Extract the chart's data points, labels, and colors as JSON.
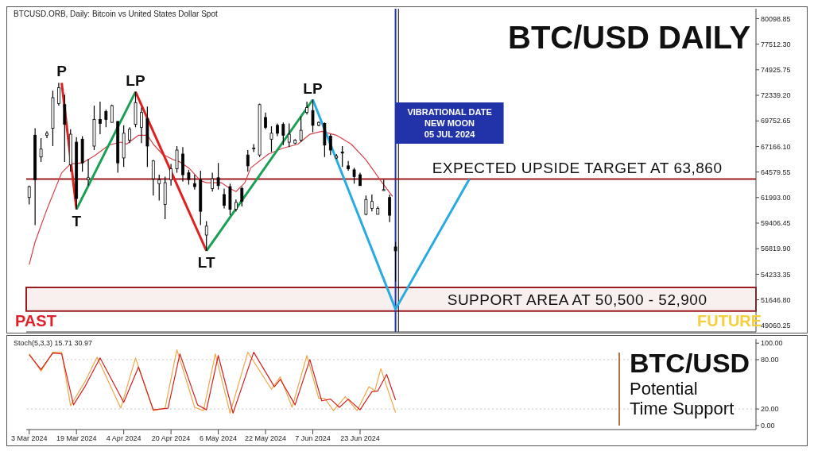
{
  "chart_data": [
    {
      "type": "candlestick",
      "title": "BTC/USD DAILY",
      "subtitle": "BTCUSD.ORB, Daily:  Bitcoin vs United States Dollar Spot",
      "color": "#000000",
      "x": [
        "2024-03-03",
        "2024-03-05",
        "2024-03-07",
        "2024-03-09",
        "2024-03-11",
        "2024-03-13",
        "2024-03-15",
        "2024-03-17",
        "2024-03-19",
        "2024-03-21",
        "2024-03-23",
        "2024-03-25",
        "2024-03-27",
        "2024-03-29",
        "2024-03-31",
        "2024-04-02",
        "2024-04-04",
        "2024-04-06",
        "2024-04-08",
        "2024-04-10",
        "2024-04-12",
        "2024-04-14",
        "2024-04-16",
        "2024-04-18",
        "2024-04-20",
        "2024-04-22",
        "2024-04-24",
        "2024-04-26",
        "2024-04-28",
        "2024-04-30",
        "2024-05-02",
        "2024-05-04",
        "2024-05-06",
        "2024-05-08",
        "2024-05-10",
        "2024-05-12",
        "2024-05-14",
        "2024-05-16",
        "2024-05-18",
        "2024-05-20",
        "2024-05-22",
        "2024-05-24",
        "2024-05-26",
        "2024-05-28",
        "2024-05-30",
        "2024-06-01",
        "2024-06-03",
        "2024-06-05",
        "2024-06-07",
        "2024-06-09",
        "2024-06-11",
        "2024-06-13",
        "2024-06-15",
        "2024-06-17",
        "2024-06-19",
        "2024-06-21",
        "2024-06-23",
        "2024-06-25",
        "2024-06-27",
        "2024-06-29",
        "2024-07-01",
        "2024-07-03",
        "2024-07-05"
      ],
      "ohlc": [
        [
          62000,
          63200,
          61300,
          63100
        ],
        [
          68300,
          69000,
          59200,
          63800
        ],
        [
          66100,
          68000,
          65600,
          66900
        ],
        [
          68300,
          68700,
          68000,
          68500
        ],
        [
          69000,
          72800,
          67200,
          72100
        ],
        [
          71500,
          73600,
          71300,
          73100
        ],
        [
          71400,
          72400,
          65600,
          69400
        ],
        [
          65300,
          68900,
          64600,
          68400
        ],
        [
          67600,
          68100,
          60800,
          61900
        ],
        [
          67900,
          68200,
          64600,
          65500
        ],
        [
          63800,
          65900,
          63200,
          64000
        ],
        [
          67200,
          71300,
          66800,
          69900
        ],
        [
          69900,
          71700,
          68400,
          69500
        ],
        [
          70700,
          70900,
          69100,
          69900
        ],
        [
          69600,
          71400,
          69600,
          71300
        ],
        [
          69700,
          69700,
          64500,
          65500
        ],
        [
          66000,
          69300,
          65100,
          68500
        ],
        [
          67800,
          69100,
          67500,
          68900
        ],
        [
          69400,
          72700,
          69100,
          71600
        ],
        [
          69100,
          71100,
          67500,
          70600
        ],
        [
          70000,
          71200,
          65100,
          67200
        ],
        [
          63900,
          65800,
          62200,
          65700
        ],
        [
          63400,
          64300,
          61700,
          63800
        ],
        [
          61300,
          64100,
          59800,
          63500
        ],
        [
          63800,
          65400,
          63200,
          64900
        ],
        [
          64900,
          67200,
          64500,
          66800
        ],
        [
          66400,
          67100,
          63600,
          64300
        ],
        [
          64500,
          64800,
          63300,
          63800
        ],
        [
          63400,
          64300,
          62800,
          63100
        ],
        [
          63800,
          64700,
          59200,
          60600
        ],
        [
          58200,
          59600,
          56600,
          59100
        ],
        [
          62900,
          64500,
          62600,
          63900
        ],
        [
          64000,
          65500,
          62800,
          63200
        ],
        [
          62300,
          62900,
          60900,
          61200
        ],
        [
          63100,
          63400,
          60200,
          60800
        ],
        [
          60800,
          61800,
          60600,
          61500
        ],
        [
          62900,
          63100,
          61100,
          61600
        ],
        [
          66300,
          66800,
          64600,
          65200
        ],
        [
          67000,
          67400,
          66600,
          67000
        ],
        [
          66300,
          71500,
          66100,
          71400
        ],
        [
          70100,
          70600,
          68900,
          69100
        ],
        [
          67900,
          69200,
          66600,
          68500
        ],
        [
          69300,
          69500,
          68200,
          68500
        ],
        [
          69400,
          69600,
          67300,
          68300
        ],
        [
          67600,
          69500,
          67100,
          68400
        ],
        [
          67500,
          67900,
          67400,
          67800
        ],
        [
          67800,
          70200,
          67600,
          68800
        ],
        [
          70600,
          71700,
          70400,
          71100
        ],
        [
          70800,
          71900,
          68600,
          69300
        ],
        [
          69300,
          69700,
          69200,
          69600
        ],
        [
          69500,
          69600,
          66100,
          67300
        ],
        [
          68200,
          68400,
          66300,
          66800
        ],
        [
          66000,
          66400,
          65900,
          66200
        ],
        [
          66600,
          67200,
          65100,
          66500
        ],
        [
          65200,
          65700,
          64700,
          64900
        ],
        [
          64800,
          65000,
          63400,
          64100
        ],
        [
          64300,
          64500,
          63200,
          63200
        ],
        [
          60300,
          62200,
          60200,
          61800
        ],
        [
          60900,
          62300,
          60600,
          61600
        ],
        [
          60300,
          61100,
          60300,
          60900
        ],
        [
          62700,
          63800,
          62700,
          62800
        ],
        [
          62000,
          62300,
          59500,
          60200
        ],
        [
          57000,
          57500,
          53500,
          56600
        ]
      ],
      "series": [
        {
          "type": "line",
          "color": "#d9404a",
          "x": [
            "2024-03-03",
            "2024-03-05",
            "2024-03-09",
            "2024-03-14",
            "2024-03-17",
            "2024-03-21",
            "2024-03-25",
            "2024-03-30",
            "2024-04-03",
            "2024-04-05",
            "2024-04-09",
            "2024-04-12",
            "2024-04-14",
            "2024-04-17",
            "2024-04-21",
            "2024-04-23",
            "2024-04-26",
            "2024-04-30",
            "2024-05-02",
            "2024-05-05",
            "2024-05-07",
            "2024-05-10",
            "2024-05-12",
            "2024-05-15",
            "2024-05-17",
            "2024-05-23",
            "2024-05-28",
            "2024-06-02",
            "2024-06-06",
            "2024-06-10",
            "2024-06-15",
            "2024-06-20",
            "2024-06-25",
            "2024-06-30",
            "2024-07-04"
          ],
          "values": [
            55200,
            57500,
            60800,
            64500,
            65400,
            65500,
            66200,
            67300,
            67600,
            67400,
            68300,
            68300,
            67400,
            66400,
            65800,
            65600,
            65000,
            63700,
            63500,
            63500,
            63500,
            62900,
            62600,
            63500,
            65000,
            66400,
            67000,
            67400,
            68400,
            68700,
            68300,
            67400,
            65800,
            63700,
            62100
          ]
        },
        {
          "type": "line",
          "color": "#e02020",
          "x": [
            "2024-03-14",
            "2024-03-19"
          ],
          "values": [
            73600,
            60800
          ]
        },
        {
          "type": "line",
          "color": "#1aa055",
          "x": [
            "2024-03-19",
            "2024-04-08"
          ],
          "values": [
            60800,
            72700
          ]
        },
        {
          "type": "line",
          "color": "#e02020",
          "x": [
            "2024-04-08",
            "2024-05-02"
          ],
          "values": [
            72700,
            56600
          ]
        },
        {
          "type": "line",
          "color": "#1aa055",
          "x": [
            "2024-05-02",
            "2024-06-07"
          ],
          "values": [
            56600,
            71900
          ]
        },
        {
          "type": "line",
          "color": "#29abe2",
          "x": [
            "2024-06-07",
            "2024-07-05",
            "2024-07-30"
          ],
          "values": [
            71900,
            50700,
            63860
          ]
        }
      ],
      "xlim": [
        "2024-03-02",
        "2024-11-04"
      ],
      "ylim": [
        48400,
        81100
      ],
      "yticks": [
        {
          "value": 80098.85,
          "label": "80098.85"
        },
        {
          "value": 77512.3,
          "label": "77512.30"
        },
        {
          "value": 74925.75,
          "label": "74925.75"
        },
        {
          "value": 72339.2,
          "label": "72339.20"
        },
        {
          "value": 69752.65,
          "label": "69752.65"
        },
        {
          "value": 67166.1,
          "label": "67166.10"
        },
        {
          "value": 64579.55,
          "label": "64579.55"
        },
        {
          "value": 61993,
          "label": "61993.00"
        },
        {
          "value": 59406.45,
          "label": "59406.45"
        },
        {
          "value": 56819.9,
          "label": "56819.90"
        },
        {
          "value": 54233.35,
          "label": "54233.35"
        },
        {
          "value": 51646.8,
          "label": "51646.80"
        },
        {
          "value": 49060.25,
          "label": "49060.25"
        }
      ],
      "tick_labels": "y",
      "marker": "none",
      "line_style": "solid",
      "annotations": [
        {
          "text": "P",
          "x": "2024-03-14",
          "y": 73600
        },
        {
          "text": "T",
          "x": "2024-03-19",
          "y": 60800
        },
        {
          "text": "LP",
          "x": "2024-04-08",
          "y": 72700
        },
        {
          "text": "LT",
          "x": "2024-05-02",
          "y": 56600
        },
        {
          "text": "LP",
          "x": "2024-06-07",
          "y": 71900
        },
        "PAST",
        "FUTURE"
      ],
      "ref_lines": [
        {
          "axis": "x",
          "value": "2024-07-06",
          "color": "#000000"
        },
        {
          "axis": "x",
          "value": "2024-07-05",
          "label": "VIBRATIONAL DATE\nNEW MOON\n05 JUL 2024",
          "color": "#2233aa"
        },
        {
          "axis": "y",
          "value": 63860,
          "label": "EXPECTED UPSIDE TARGET AT 63,860",
          "color": "#9b1b1f"
        }
      ],
      "bands": [
        {
          "axis": "y",
          "from": 50500,
          "to": 52900,
          "label": "SUPPORT AREA AT 50,500 - 52,900",
          "color": "#9b1b1f"
        }
      ]
    },
    {
      "type": "line",
      "title": "Stoch(5,3,3) 15.71 30.97",
      "series": [
        {
          "color": "#f0a848",
          "x": [
            "2024-03-03",
            "2024-03-07",
            "2024-03-11",
            "2024-03-14",
            "2024-03-17",
            "2024-03-22",
            "2024-03-26",
            "2024-04-03",
            "2024-04-08",
            "2024-04-14",
            "2024-04-18",
            "2024-04-22",
            "2024-04-28",
            "2024-05-01",
            "2024-05-05",
            "2024-05-10",
            "2024-05-16",
            "2024-05-24",
            "2024-05-27",
            "2024-05-31",
            "2024-06-05",
            "2024-06-09",
            "2024-06-11",
            "2024-06-14",
            "2024-06-18",
            "2024-06-22",
            "2024-06-26",
            "2024-06-28",
            "2024-06-30",
            "2024-07-05"
          ],
          "values": [
            87,
            66,
            89,
            89,
            24,
            54,
            83,
            21,
            82,
            18,
            21,
            92,
            22,
            18,
            87,
            15,
            89,
            44,
            59,
            22,
            85,
            33,
            33,
            18,
            35,
            18,
            47,
            42,
            69,
            15.71
          ]
        },
        {
          "color": "#d42020",
          "x": [
            "2024-03-03",
            "2024-03-07",
            "2024-03-11",
            "2024-03-14",
            "2024-03-18",
            "2024-03-22",
            "2024-03-27",
            "2024-04-04",
            "2024-04-09",
            "2024-04-14",
            "2024-04-19",
            "2024-04-23",
            "2024-04-29",
            "2024-05-02",
            "2024-05-06",
            "2024-05-11",
            "2024-05-18",
            "2024-05-25",
            "2024-05-27",
            "2024-06-01",
            "2024-06-06",
            "2024-06-10",
            "2024-06-13",
            "2024-06-16",
            "2024-06-19",
            "2024-06-23",
            "2024-06-27",
            "2024-06-29",
            "2024-07-02",
            "2024-07-05"
          ],
          "values": [
            86,
            68,
            88,
            87,
            25,
            48,
            82,
            28,
            71,
            19,
            21,
            87,
            25,
            19,
            85,
            15,
            89,
            47,
            56,
            25,
            80,
            30,
            32,
            22,
            32,
            19,
            41,
            42,
            62,
            30.97
          ]
        }
      ],
      "xlim": [
        "2024-03-02",
        "2024-11-04"
      ],
      "ylim": [
        -5,
        105
      ],
      "xticks": [
        {
          "value": "2024-03-03",
          "label": "3 Mar 2024"
        },
        {
          "value": "2024-03-19",
          "label": "19 Mar 2024"
        },
        {
          "value": "2024-04-04",
          "label": "4 Apr 2024"
        },
        {
          "value": "2024-04-20",
          "label": "20 Apr 2024"
        },
        {
          "value": "2024-05-06",
          "label": "6 May 2024"
        },
        {
          "value": "2024-05-22",
          "label": "22 May 2024"
        },
        {
          "value": "2024-06-07",
          "label": "7 Jun 2024"
        },
        {
          "value": "2024-06-23",
          "label": "23 Jun 2024"
        }
      ],
      "yticks": [
        {
          "value": 100,
          "label": "100.00"
        },
        {
          "value": 80,
          "label": "80.00"
        },
        {
          "value": 20,
          "label": "20.00"
        },
        {
          "value": 0,
          "label": "0.00"
        }
      ],
      "marker": "none",
      "line_style": "solid",
      "ref_lines": [
        {
          "axis": "y",
          "value": 80,
          "color": "#c8c8c8",
          "line_style": "dotted"
        },
        {
          "axis": "y",
          "value": 20,
          "color": "#c8c8c8",
          "line_style": "dotted"
        }
      ]
    },
    {
      "type": "other",
      "annotations": [
        "BTC/USD",
        "Potential",
        "Time Support"
      ]
    }
  ]
}
